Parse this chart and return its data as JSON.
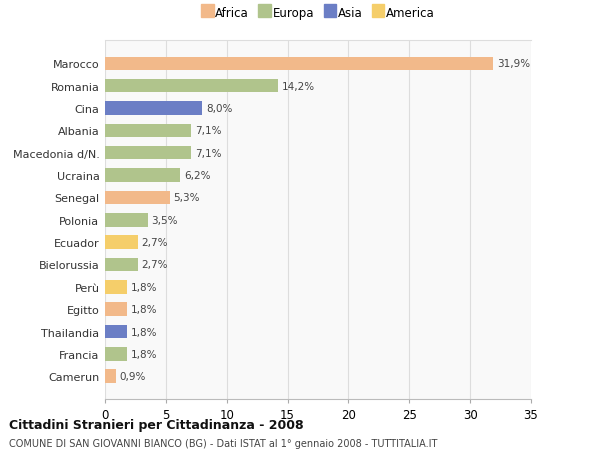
{
  "countries": [
    "Marocco",
    "Romania",
    "Cina",
    "Albania",
    "Macedonia d/N.",
    "Ucraina",
    "Senegal",
    "Polonia",
    "Ecuador",
    "Bielorussia",
    "Perù",
    "Egitto",
    "Thailandia",
    "Francia",
    "Camerun"
  ],
  "values": [
    31.9,
    14.2,
    8.0,
    7.1,
    7.1,
    6.2,
    5.3,
    3.5,
    2.7,
    2.7,
    1.8,
    1.8,
    1.8,
    1.8,
    0.9
  ],
  "labels": [
    "31,9%",
    "14,2%",
    "8,0%",
    "7,1%",
    "7,1%",
    "6,2%",
    "5,3%",
    "3,5%",
    "2,7%",
    "2,7%",
    "1,8%",
    "1,8%",
    "1,8%",
    "1,8%",
    "0,9%"
  ],
  "continents": [
    "Africa",
    "Europa",
    "Asia",
    "Europa",
    "Europa",
    "Europa",
    "Africa",
    "Europa",
    "America",
    "Europa",
    "America",
    "Africa",
    "Asia",
    "Europa",
    "Africa"
  ],
  "colors": {
    "Africa": "#F2B98A",
    "Europa": "#B0C48C",
    "Asia": "#6B7EC5",
    "America": "#F5CE6A"
  },
  "title": "Cittadini Stranieri per Cittadinanza - 2008",
  "subtitle": "COMUNE DI SAN GIOVANNI BIANCO (BG) - Dati ISTAT al 1° gennaio 2008 - TUTTITALIA.IT",
  "xlim": [
    0,
    35
  ],
  "xticks": [
    0,
    5,
    10,
    15,
    20,
    25,
    30,
    35
  ],
  "background_color": "#ffffff",
  "plot_bg_color": "#f9f9f9",
  "grid_color": "#dddddd",
  "bar_height": 0.6
}
